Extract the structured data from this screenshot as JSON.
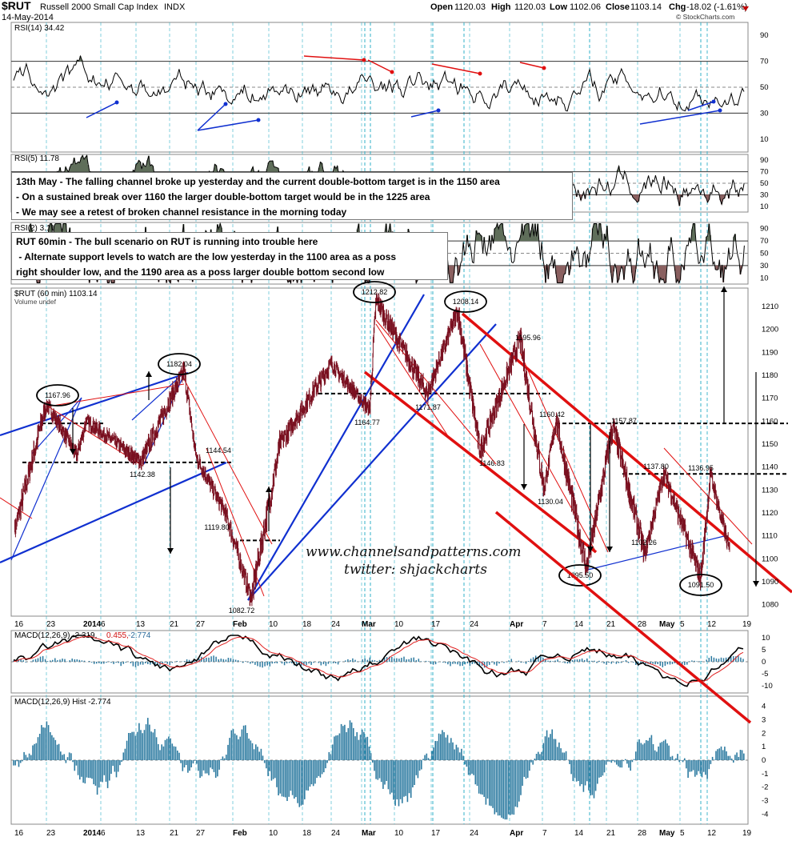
{
  "header": {
    "symbol": "$RUT",
    "name": "Russell 2000 Small Cap Index",
    "exchange": "INDX",
    "date": "14-May-2014",
    "open_label": "Open",
    "open": "1120.03",
    "high_label": "High",
    "high": "1120.03",
    "low_label": "Low",
    "low": "1102.06",
    "close_label": "Close",
    "close": "1103.14",
    "chg_label": "Chg",
    "chg": "-18.02 (-1.61%)",
    "copyright": "© StockCharts.com"
  },
  "panels": {
    "rsi14": {
      "label": "RSI(14) 34.42",
      "ticks": [
        "90",
        "70",
        "50",
        "30",
        "10"
      ]
    },
    "rsi5": {
      "label": "RSI(5) 11.78",
      "ticks": [
        "90",
        "70",
        "50",
        "30",
        "10"
      ]
    },
    "rsi2": {
      "label": "RSI(2) 3.11",
      "ticks": [
        "90",
        "70",
        "50",
        "30",
        "10"
      ]
    },
    "price": {
      "label": "$RUT (60 min) 1103.14",
      "sublabel": "Volume undef"
    },
    "macd": {
      "label": "MACD(12,26,9) -2.319,",
      "v2": "0.455,",
      "v3": "-2.774",
      "ticks": [
        "10",
        "5",
        "0",
        "-5",
        "-10"
      ]
    },
    "hist": {
      "label": "MACD(12,26,9) Hist -2.774",
      "ticks": [
        "4",
        "3",
        "2",
        "1",
        "0",
        "-1",
        "-2",
        "-3",
        "-4"
      ]
    }
  },
  "notes": {
    "box1": [
      "13th May - The falling channel broke up yesterday and the current double-bottom target is in the 1150 area",
      "- On a sustained break over 1160 the larger double-bottom target would be in the 1225 area",
      "- We may see a retest of broken channel resistance in the morning today"
    ],
    "box2": [
      "RUT 60min - The bull scenario on RUT is running into trouble here",
      " - Alternate support levels to watch are the low yesterday in the 1100 area as a poss",
      "right shoulder low, and the 1190 area as a poss larger double bottom second low"
    ]
  },
  "watermark": [
    "www.channelsandpatterns.com",
    "twitter: shjackcharts"
  ],
  "x_axis": {
    "ticks": [
      "16",
      "23",
      "2014",
      "6",
      "13",
      "21",
      "27",
      "Feb",
      "10",
      "18",
      "24",
      "Mar",
      "10",
      "17",
      "24",
      "Apr",
      "7",
      "14",
      "21",
      "28",
      "May",
      "5",
      "12",
      "19"
    ]
  },
  "annotations": [
    {
      "text": "1167.96",
      "circled": true
    },
    {
      "text": "1182.04",
      "circled": true
    },
    {
      "text": "1142.38",
      "circled": false
    },
    {
      "text": "1144.54",
      "circled": false
    },
    {
      "text": "1119.80",
      "circled": false
    },
    {
      "text": "1082.72",
      "circled": false
    },
    {
      "text": "1212.82",
      "circled": true
    },
    {
      "text": "1164.77",
      "circled": false
    },
    {
      "text": "1171.87",
      "circled": false
    },
    {
      "text": "1208.14",
      "circled": true
    },
    {
      "text": "1195.96",
      "circled": false
    },
    {
      "text": "1146.83",
      "circled": false
    },
    {
      "text": "1160.42",
      "circled": false
    },
    {
      "text": "1130.04",
      "circled": false
    },
    {
      "text": "1095.50",
      "circled": true
    },
    {
      "text": "1157.87",
      "circled": false
    },
    {
      "text": "1102.26",
      "circled": false
    },
    {
      "text": "1137.80",
      "circled": false
    },
    {
      "text": "1136.95",
      "circled": false
    },
    {
      "text": "1091.50",
      "circled": true
    }
  ],
  "colors": {
    "price": "#7a1020",
    "rsi": "#000000",
    "bull_fill": "#5f6e5a",
    "bear_fill": "#8a6060",
    "channel_red": "#e01010",
    "trend_blue": "#1030d0",
    "grid_cyan": "#30b0c8",
    "macd_line": "#000000",
    "signal_line": "#e02020",
    "hist": "#2c7aa0"
  },
  "chart_data": {
    "type": "line",
    "title": "$RUT Russell 2000 Small Cap Index (60 min)",
    "x": [
      "16",
      "23",
      "2014",
      "6",
      "13",
      "21",
      "27",
      "Feb",
      "10",
      "18",
      "24",
      "Mar",
      "10",
      "17",
      "24",
      "Apr",
      "7",
      "14",
      "21",
      "28",
      "May",
      "5",
      "12",
      "19"
    ],
    "series": [
      {
        "name": "$RUT (60 min)",
        "pivots": [
          {
            "x": "Dec 16",
            "y": 1112
          },
          {
            "x": "Dec 23",
            "y": 1167.96
          },
          {
            "x": "Dec 30",
            "y": 1145
          },
          {
            "x": "Jan 2",
            "y": 1160
          },
          {
            "x": "Jan 13",
            "y": 1142.38
          },
          {
            "x": "Jan 22",
            "y": 1182.04
          },
          {
            "x": "Jan 27",
            "y": 1144.54
          },
          {
            "x": "Jan 30",
            "y": 1119.8
          },
          {
            "x": "Feb 5",
            "y": 1082.72
          },
          {
            "x": "Feb 18",
            "y": 1150
          },
          {
            "x": "Feb 25",
            "y": 1185
          },
          {
            "x": "Feb 28",
            "y": 1164.77
          },
          {
            "x": "Mar 4",
            "y": 1212.82
          },
          {
            "x": "Mar 14",
            "y": 1171.87
          },
          {
            "x": "Mar 21",
            "y": 1208.14
          },
          {
            "x": "Mar 28",
            "y": 1146.83
          },
          {
            "x": "Apr 3",
            "y": 1195.96
          },
          {
            "x": "Apr 9",
            "y": 1130.04
          },
          {
            "x": "Apr 11",
            "y": 1160.42
          },
          {
            "x": "Apr 15",
            "y": 1095.5
          },
          {
            "x": "Apr 22",
            "y": 1157.87
          },
          {
            "x": "Apr 29",
            "y": 1102.26
          },
          {
            "x": "May 2",
            "y": 1137.8
          },
          {
            "x": "May 8",
            "y": 1091.5
          },
          {
            "x": "May 12",
            "y": 1136.95
          },
          {
            "x": "May 14",
            "y": 1103.14
          }
        ]
      }
    ],
    "ylim": [
      1075,
      1218
    ],
    "y_ticks": [
      1080,
      1090,
      1100,
      1110,
      1120,
      1130,
      1140,
      1150,
      1160,
      1170,
      1180,
      1190,
      1200,
      1210
    ],
    "grid": true,
    "horizontal_levels": [
      1142,
      1172,
      1159,
      1137
    ]
  }
}
